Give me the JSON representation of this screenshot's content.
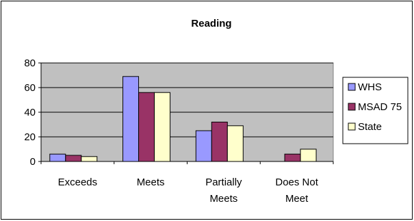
{
  "chart_data": {
    "type": "bar",
    "title": "Reading",
    "categories": [
      [
        "Exceeds"
      ],
      [
        "Meets"
      ],
      [
        "Partially",
        "Meets"
      ],
      [
        "Does Not",
        "Meet"
      ]
    ],
    "series": [
      {
        "name": "WHS",
        "color": "#9999FF",
        "values": [
          6,
          69,
          25,
          0
        ]
      },
      {
        "name": "MSAD 75",
        "color": "#993366",
        "values": [
          5,
          56,
          32,
          6
        ]
      },
      {
        "name": "State",
        "color": "#FFFFCC",
        "values": [
          4,
          56,
          29,
          10
        ]
      }
    ],
    "yticks": [
      0,
      20,
      40,
      60,
      80
    ],
    "ylim": [
      0,
      80
    ],
    "grid": true,
    "plot_background": "#C0C0C0",
    "legend_position": "right"
  }
}
